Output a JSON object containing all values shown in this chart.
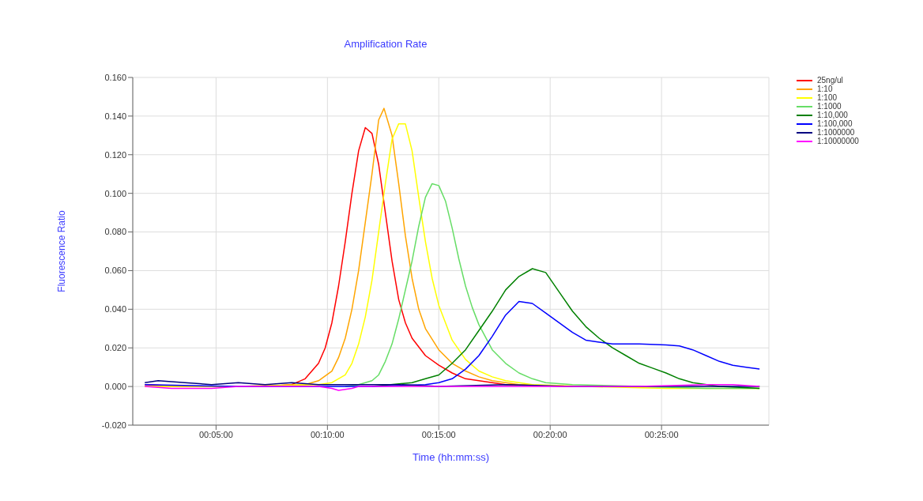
{
  "chart_data": {
    "type": "line",
    "title": "Amplification Rate",
    "xlabel": "Time (hh:mm:ss)",
    "ylabel": "Fluorescence Ratio",
    "xlim": [
      0.021,
      0.497
    ],
    "xticks": [
      {
        "value": 0.083333,
        "label": "00:05:00"
      },
      {
        "value": 0.166667,
        "label": "00:10:00"
      },
      {
        "value": 0.25,
        "label": "00:15:00"
      },
      {
        "value": 0.333333,
        "label": "00:20:00"
      },
      {
        "value": 0.416667,
        "label": "00:25:00"
      }
    ],
    "ylim": [
      -0.02,
      0.16
    ],
    "yticks": [
      {
        "value": -0.02,
        "label": "-0.020"
      },
      {
        "value": 0,
        "label": "0.000"
      },
      {
        "value": 0.02,
        "label": "0.020"
      },
      {
        "value": 0.04,
        "label": "0.040"
      },
      {
        "value": 0.06,
        "label": "0.060"
      },
      {
        "value": 0.08,
        "label": "0.080"
      },
      {
        "value": 0.1,
        "label": "0.100"
      },
      {
        "value": 0.12,
        "label": "0.120"
      },
      {
        "value": 0.14,
        "label": "0.140"
      },
      {
        "value": 0.16,
        "label": "0.160"
      }
    ],
    "grid": true,
    "legend": "top right",
    "marker": "none",
    "line_style": "solid",
    "series": [
      {
        "name": "25ng/ul",
        "color": "#ff0000",
        "x": [
          0.03,
          0.06,
          0.09,
          0.12,
          0.14,
          0.15,
          0.16,
          0.165,
          0.17,
          0.175,
          0.18,
          0.185,
          0.19,
          0.195,
          0.2,
          0.205,
          0.21,
          0.215,
          0.22,
          0.225,
          0.23,
          0.24,
          0.25,
          0.26,
          0.27,
          0.28,
          0.3,
          0.35
        ],
        "values": [
          0.001,
          0.0,
          0.0,
          0.0,
          0.001,
          0.004,
          0.012,
          0.02,
          0.033,
          0.052,
          0.075,
          0.1,
          0.122,
          0.134,
          0.131,
          0.115,
          0.09,
          0.065,
          0.045,
          0.033,
          0.025,
          0.016,
          0.011,
          0.007,
          0.004,
          0.003,
          0.001,
          0.0
        ]
      },
      {
        "name": "1:10",
        "color": "#ffa500",
        "x": [
          0.03,
          0.1,
          0.15,
          0.16,
          0.17,
          0.175,
          0.18,
          0.185,
          0.19,
          0.195,
          0.2,
          0.205,
          0.209,
          0.215,
          0.22,
          0.225,
          0.23,
          0.235,
          0.24,
          0.25,
          0.26,
          0.27,
          0.28,
          0.29,
          0.31,
          0.35
        ],
        "values": [
          0.0,
          0.0,
          0.001,
          0.003,
          0.008,
          0.015,
          0.025,
          0.04,
          0.06,
          0.085,
          0.11,
          0.138,
          0.144,
          0.13,
          0.105,
          0.078,
          0.056,
          0.04,
          0.03,
          0.019,
          0.012,
          0.008,
          0.005,
          0.003,
          0.001,
          0.0
        ]
      },
      {
        "name": "1:100",
        "color": "#ffff00",
        "x": [
          0.03,
          0.1,
          0.16,
          0.17,
          0.18,
          0.185,
          0.19,
          0.195,
          0.2,
          0.205,
          0.21,
          0.215,
          0.22,
          0.225,
          0.23,
          0.235,
          0.24,
          0.245,
          0.25,
          0.26,
          0.27,
          0.28,
          0.29,
          0.3,
          0.32,
          0.36,
          0.42,
          0.49
        ],
        "values": [
          0.0,
          0.0,
          0.001,
          0.002,
          0.006,
          0.012,
          0.022,
          0.036,
          0.055,
          0.08,
          0.105,
          0.128,
          0.136,
          0.136,
          0.122,
          0.098,
          0.075,
          0.056,
          0.042,
          0.024,
          0.014,
          0.008,
          0.005,
          0.003,
          0.001,
          0.0,
          -0.001,
          -0.001
        ]
      },
      {
        "name": "1:1000",
        "color": "#66dd66",
        "x": [
          0.18,
          0.19,
          0.2,
          0.205,
          0.21,
          0.215,
          0.22,
          0.225,
          0.23,
          0.235,
          0.24,
          0.245,
          0.25,
          0.255,
          0.26,
          0.265,
          0.27,
          0.275,
          0.28,
          0.29,
          0.3,
          0.31,
          0.32,
          0.33,
          0.35,
          0.4,
          0.45,
          0.49
        ],
        "values": [
          0.0,
          0.001,
          0.003,
          0.006,
          0.013,
          0.022,
          0.035,
          0.05,
          0.065,
          0.083,
          0.098,
          0.105,
          0.104,
          0.096,
          0.082,
          0.066,
          0.052,
          0.041,
          0.032,
          0.019,
          0.012,
          0.007,
          0.004,
          0.002,
          0.001,
          0.0,
          -0.001,
          -0.001
        ]
      },
      {
        "name": "1:10,000",
        "color": "#008000",
        "x": [
          0.2,
          0.23,
          0.24,
          0.25,
          0.26,
          0.27,
          0.28,
          0.29,
          0.3,
          0.31,
          0.32,
          0.33,
          0.34,
          0.35,
          0.36,
          0.37,
          0.38,
          0.39,
          0.4,
          0.41,
          0.42,
          0.43,
          0.44,
          0.46,
          0.49
        ],
        "values": [
          0.0,
          0.002,
          0.004,
          0.006,
          0.012,
          0.019,
          0.029,
          0.039,
          0.05,
          0.057,
          0.061,
          0.059,
          0.049,
          0.039,
          0.031,
          0.025,
          0.02,
          0.016,
          0.012,
          0.0095,
          0.007,
          0.004,
          0.002,
          0.0,
          -0.001
        ]
      },
      {
        "name": "1:100,000",
        "color": "#0000ff",
        "x": [
          0.03,
          0.1,
          0.2,
          0.24,
          0.25,
          0.26,
          0.27,
          0.28,
          0.29,
          0.3,
          0.31,
          0.32,
          0.33,
          0.34,
          0.35,
          0.36,
          0.37,
          0.38,
          0.4,
          0.42,
          0.43,
          0.44,
          0.45,
          0.46,
          0.47,
          0.48,
          0.49
        ],
        "values": [
          0.001,
          0.0,
          0.0,
          0.001,
          0.002,
          0.004,
          0.009,
          0.016,
          0.026,
          0.037,
          0.044,
          0.043,
          0.038,
          0.033,
          0.028,
          0.024,
          0.023,
          0.022,
          0.022,
          0.0215,
          0.021,
          0.019,
          0.016,
          0.013,
          0.011,
          0.01,
          0.009
        ]
      },
      {
        "name": "1:1000000",
        "color": "#000080",
        "x": [
          0.03,
          0.04,
          0.06,
          0.08,
          0.1,
          0.12,
          0.14,
          0.16,
          0.18,
          0.2,
          0.22,
          0.25,
          0.3,
          0.35,
          0.4,
          0.45,
          0.49
        ],
        "values": [
          0.002,
          0.003,
          0.002,
          0.001,
          0.002,
          0.001,
          0.002,
          0.001,
          0.001,
          0.001,
          0.001,
          0.0,
          0.001,
          0.0,
          0.0,
          0.0,
          0.0
        ]
      },
      {
        "name": "1:10000000",
        "color": "#ff00ff",
        "x": [
          0.03,
          0.05,
          0.08,
          0.1,
          0.16,
          0.17,
          0.175,
          0.185,
          0.19,
          0.25,
          0.3,
          0.35,
          0.4,
          0.45,
          0.47,
          0.49
        ],
        "values": [
          0.0,
          -0.001,
          -0.001,
          0.0,
          0.0,
          -0.001,
          -0.002,
          -0.001,
          0.0,
          0.0,
          0.0,
          0.0,
          0.0,
          0.001,
          0.001,
          0.0
        ]
      }
    ]
  }
}
